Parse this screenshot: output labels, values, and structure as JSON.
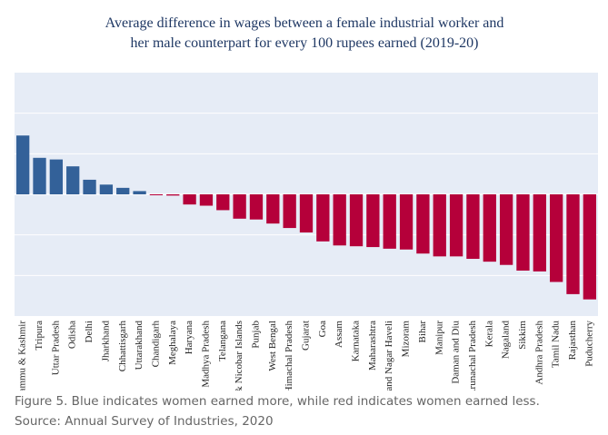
{
  "chart_data": {
    "type": "bar",
    "title_lines": [
      "Average difference in wages between a female industrial worker and",
      "her male counterpart for every 100 rupees earned (2019-20)"
    ],
    "categories": [
      "Jammu & Kashmir",
      "Tripura",
      "Uttar Pradesh",
      "Odisha",
      "Delhi",
      "Jharkhand",
      "Chhattisgarh",
      "Uttarakhand",
      "Chandigarh",
      "Meghalaya",
      "Haryana",
      "Madhya Pradesh",
      "Telangana",
      "Andaman & Nicobar Islands",
      "Punjab",
      "West Bengal",
      "Himachal Pradesh",
      "Gujarat",
      "Goa",
      "Assam",
      "Karnataka",
      "Maharashtra",
      "Dadra and Nagar Haveli",
      "Mizoram",
      "Bihar",
      "Manipur",
      "Daman and Diu",
      "Arunachal Pradesh",
      "Kerala",
      "Nagaland",
      "Sikkim",
      "Andhra Pradesh",
      "Tamil Nadu",
      "Rajasthan",
      "Puducherry"
    ],
    "values": [
      14.5,
      9.0,
      8.6,
      6.9,
      3.6,
      2.4,
      1.6,
      0.8,
      -0.2,
      -0.3,
      -2.5,
      -2.8,
      -3.9,
      -6.0,
      -6.2,
      -7.2,
      -8.3,
      -9.4,
      -11.6,
      -12.6,
      -12.8,
      -13.0,
      -13.4,
      -13.6,
      -14.6,
      -15.3,
      -15.3,
      -15.9,
      -16.6,
      -17.4,
      -18.8,
      -19.0,
      -21.6,
      -24.6,
      -25.9
    ],
    "ylim": [
      -30,
      30
    ],
    "yticks": [
      -20,
      -10,
      0,
      10,
      20
    ],
    "grid": true,
    "legend": "none",
    "colors": {
      "positive": "#336199",
      "negative": "#b5003a",
      "plot_background": "#e6ecf6",
      "gridline": "#ffffff",
      "title": "#1f3864"
    }
  },
  "captions": {
    "line1": "Figure 5. Blue indicates women earned more, while red indicates women earned less.",
    "line2": "Source: Annual Survey of Industries, 2020"
  }
}
